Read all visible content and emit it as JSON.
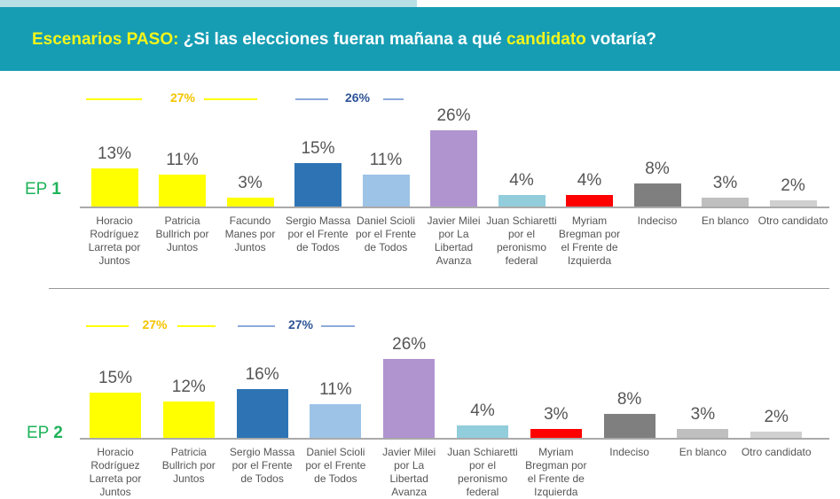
{
  "header": {
    "title_prefix": "Escenarios PASO:",
    "title_part1": " ¿Si las elecciones fueran mañana a qué ",
    "title_highlight": "candidato",
    "title_part2": " votaría?"
  },
  "colors": {
    "header_bg": "#169db3",
    "highlight": "#f5f51a",
    "juntos": "#ffff00",
    "massa": "#2e74b5",
    "scioli": "#9dc3e6",
    "milei": "#b094d0",
    "schiaretti": "#92cddc",
    "bregman": "#ff0000",
    "indeciso": "#7f7f7f",
    "blanco": "#bfbfbf",
    "otro": "#d0d0d0",
    "ep_label": "#1fb35a"
  },
  "chart_data": [
    {
      "type": "bar",
      "label_prefix": "EP",
      "label_number": "1",
      "categories": [
        "Horacio Rodríguez Larreta por Juntos",
        "Patricia Bullrich por Juntos",
        "Facundo Manes por Juntos",
        "Sergio Massa por el Frente de Todos",
        "Daniel Scioli por el Frente de Todos",
        "Javier Milei por La Libertad Avanza",
        "Juan Schiaretti por el peronismo federal",
        "Myriam Bregman por el Frente de Izquierda",
        "Indeciso",
        "En blanco",
        "Otro candidato"
      ],
      "values": [
        13,
        11,
        3,
        15,
        11,
        26,
        4,
        4,
        8,
        3,
        2
      ],
      "value_labels": [
        "13%",
        "11%",
        "3%",
        "15%",
        "11%",
        "26%",
        "4%",
        "4%",
        "8%",
        "3%",
        "2%"
      ],
      "bar_colors": [
        "#ffff00",
        "#ffff00",
        "#ffff00",
        "#2e74b5",
        "#9dc3e6",
        "#b094d0",
        "#92cddc",
        "#ff0000",
        "#7f7f7f",
        "#bfbfbf",
        "#d0d0d0"
      ],
      "group_totals": [
        {
          "label": "27%",
          "color": "#f5c400",
          "line_color": "#ffff00"
        },
        {
          "label": "26%",
          "color": "#2f5597",
          "line_color": "#8eaadb"
        }
      ]
    },
    {
      "type": "bar",
      "label_prefix": "EP",
      "label_number": "2",
      "categories": [
        "Horacio Rodríguez Larreta por Juntos",
        "Patricia Bullrich por Juntos",
        "Sergio Massa por el Frente de Todos",
        "Daniel Scioli por el Frente de Todos",
        "Javier Milei por La Libertad Avanza",
        "Juan Schiaretti por el peronismo federal",
        "Myriam Bregman por el Frente de Izquierda",
        "Indeciso",
        "En blanco",
        "Otro candidato"
      ],
      "values": [
        15,
        12,
        16,
        11,
        26,
        4,
        3,
        8,
        3,
        2
      ],
      "value_labels": [
        "15%",
        "12%",
        "16%",
        "11%",
        "26%",
        "4%",
        "3%",
        "8%",
        "3%",
        "2%"
      ],
      "bar_colors": [
        "#ffff00",
        "#ffff00",
        "#2e74b5",
        "#9dc3e6",
        "#b094d0",
        "#92cddc",
        "#ff0000",
        "#7f7f7f",
        "#bfbfbf",
        "#d0d0d0"
      ],
      "group_totals": [
        {
          "label": "27%",
          "color": "#f5c400",
          "line_color": "#ffff00"
        },
        {
          "label": "27%",
          "color": "#2f5597",
          "line_color": "#8eaadb"
        }
      ]
    }
  ]
}
